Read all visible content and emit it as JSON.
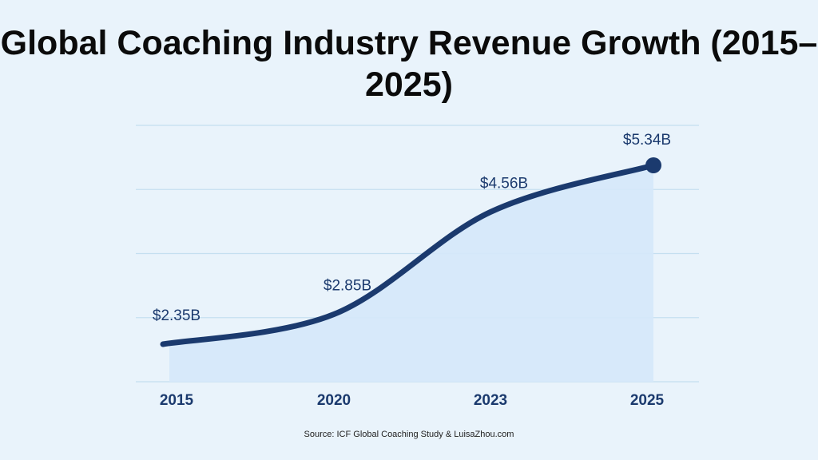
{
  "chart_data": {
    "type": "area",
    "title": "Global Coaching Industry Revenue Growth (2015–2025)",
    "categories": [
      "2015",
      "2020",
      "2023",
      "2025"
    ],
    "values": [
      2.35,
      2.85,
      4.56,
      5.34
    ],
    "data_labels": [
      "$2.35B",
      "$2.85B",
      "$4.56B",
      "$5.34B"
    ],
    "unit": "billion USD",
    "xlabel": "",
    "ylabel": "",
    "grid": true,
    "y_tick_labels_shown": false,
    "end_marker": true,
    "colors": {
      "line": "#1b3a6e",
      "fill": "#d5e8fa",
      "grid": "#c5dff0",
      "label": "#1b3a6e",
      "background": "#e9f3fb"
    }
  },
  "source": "Source: ICF Global Coaching Study & LuisaZhou.com"
}
